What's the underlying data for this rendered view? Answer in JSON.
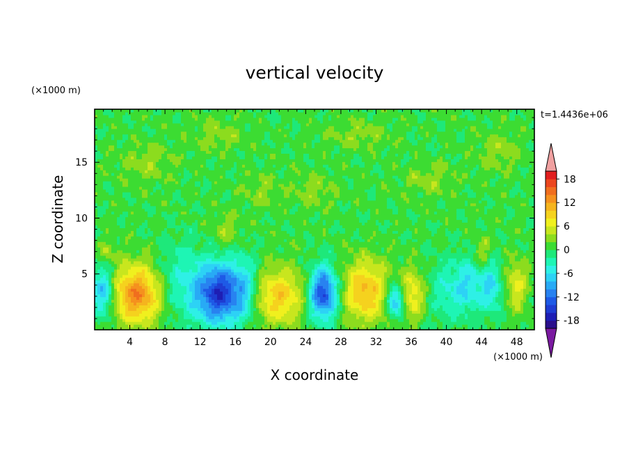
{
  "chart_data": {
    "type": "heatmap",
    "title": "vertical velocity",
    "xlabel": "X coordinate",
    "ylabel": "Z coordinate",
    "x_unit": "(×1000 m)",
    "y_unit": "(×1000 m)",
    "time_label": "t=1.4436e+06",
    "xlim": [
      0,
      50
    ],
    "ylim": [
      0,
      19.75
    ],
    "x_ticks": [
      4,
      8,
      12,
      16,
      20,
      24,
      28,
      32,
      36,
      40,
      44,
      48
    ],
    "y_ticks": [
      5,
      10,
      15
    ],
    "colorbar": {
      "tick_values": [
        18,
        12,
        6,
        0,
        -6,
        -12,
        -18
      ],
      "levels": [
        -20,
        -18,
        -16,
        -14,
        -12,
        -10,
        -8,
        -6,
        -4,
        -2,
        0,
        2,
        4,
        6,
        8,
        10,
        12,
        14,
        16,
        18,
        20
      ],
      "colors": [
        "#7a1aa0",
        "#2a0f8c",
        "#1e1eb4",
        "#1e3cd2",
        "#1e5ae6",
        "#2882f0",
        "#28aaf5",
        "#2dd2f5",
        "#2ef0e6",
        "#1ef5b4",
        "#1ee87a",
        "#3cdc32",
        "#8cdc1e",
        "#c8e61e",
        "#f0f01e",
        "#f5d21e",
        "#f5b41e",
        "#f5911e",
        "#f06e1e",
        "#eb461e",
        "#e11e1e",
        "#f0a0a0"
      ],
      "extend": "both"
    },
    "background_value": 0.5,
    "features": [
      {
        "x": 4.8,
        "z": 3.2,
        "w": 2.8,
        "h": 2.6,
        "v": 13
      },
      {
        "x": 14.2,
        "z": 3.3,
        "w": 2.8,
        "h": 2.7,
        "v": -16
      },
      {
        "x": 21.0,
        "z": 3.0,
        "w": 2.8,
        "h": 2.5,
        "v": 9
      },
      {
        "x": 26.0,
        "z": 3.3,
        "w": 1.6,
        "h": 2.3,
        "v": -15
      },
      {
        "x": 30.8,
        "z": 3.5,
        "w": 2.6,
        "h": 2.7,
        "v": 10
      },
      {
        "x": 34.2,
        "z": 2.6,
        "w": 1.0,
        "h": 1.4,
        "v": -10
      },
      {
        "x": 36.2,
        "z": 3.2,
        "w": 1.3,
        "h": 2.2,
        "v": 7
      },
      {
        "x": 1.0,
        "z": 3.4,
        "w": 1.3,
        "h": 2.2,
        "v": -9
      },
      {
        "x": 9.6,
        "z": 4.5,
        "w": 2.5,
        "h": 3.5,
        "v": -4
      },
      {
        "x": 17.2,
        "z": 4.0,
        "w": 1.3,
        "h": 3.0,
        "v": -4
      },
      {
        "x": 42.5,
        "z": 4.0,
        "w": 1.5,
        "h": 2.5,
        "v": -6
      },
      {
        "x": 45.0,
        "z": 3.8,
        "w": 1.2,
        "h": 2.2,
        "v": -7
      },
      {
        "x": 48.0,
        "z": 4.0,
        "w": 1.2,
        "h": 2.2,
        "v": 6
      },
      {
        "x": 40.0,
        "z": 3.5,
        "w": 2.0,
        "h": 2.8,
        "v": -4
      },
      {
        "x": 44.0,
        "z": 7.0,
        "w": 0.9,
        "h": 1.4,
        "v": 4
      },
      {
        "x": 15.0,
        "z": 9.0,
        "w": 1.5,
        "h": 1.6,
        "v": 3
      },
      {
        "x": 1.5,
        "z": 7.0,
        "w": 1.0,
        "h": 1.0,
        "v": 3
      },
      {
        "x": 25.0,
        "z": 12.5,
        "w": 2.5,
        "h": 1.6,
        "v": 2.6
      },
      {
        "x": 38.0,
        "z": 13.5,
        "w": 3.0,
        "h": 1.5,
        "v": 2.6
      },
      {
        "x": 6.0,
        "z": 15.0,
        "w": 3.0,
        "h": 1.8,
        "v": 2.8
      },
      {
        "x": 14.0,
        "z": 17.5,
        "w": 3.0,
        "h": 1.5,
        "v": 2.6
      },
      {
        "x": 30.0,
        "z": 17.5,
        "w": 3.5,
        "h": 1.3,
        "v": 2.6
      },
      {
        "x": 46.0,
        "z": 16.0,
        "w": 2.5,
        "h": 1.8,
        "v": 2.7
      },
      {
        "x": 19.0,
        "z": 12.5,
        "w": 2.0,
        "h": 1.5,
        "v": 2.5
      }
    ]
  }
}
